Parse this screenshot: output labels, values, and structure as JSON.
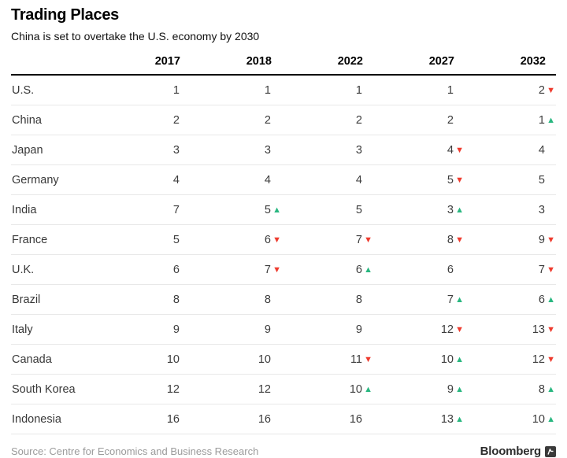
{
  "header": {
    "title": "Trading Places",
    "subtitle": "China is set to overtake the U.S. economy by 2030"
  },
  "table": {
    "country_column_header": "",
    "year_columns": [
      "2017",
      "2018",
      "2022",
      "2027",
      "2032"
    ],
    "rows": [
      {
        "country": "U.S.",
        "cells": [
          {
            "value": "1",
            "change": "none"
          },
          {
            "value": "1",
            "change": "none"
          },
          {
            "value": "1",
            "change": "none"
          },
          {
            "value": "1",
            "change": "none"
          },
          {
            "value": "2",
            "change": "down"
          }
        ]
      },
      {
        "country": "China",
        "cells": [
          {
            "value": "2",
            "change": "none"
          },
          {
            "value": "2",
            "change": "none"
          },
          {
            "value": "2",
            "change": "none"
          },
          {
            "value": "2",
            "change": "none"
          },
          {
            "value": "1",
            "change": "up"
          }
        ]
      },
      {
        "country": "Japan",
        "cells": [
          {
            "value": "3",
            "change": "none"
          },
          {
            "value": "3",
            "change": "none"
          },
          {
            "value": "3",
            "change": "none"
          },
          {
            "value": "4",
            "change": "down"
          },
          {
            "value": "4",
            "change": "none"
          }
        ]
      },
      {
        "country": "Germany",
        "cells": [
          {
            "value": "4",
            "change": "none"
          },
          {
            "value": "4",
            "change": "none"
          },
          {
            "value": "4",
            "change": "none"
          },
          {
            "value": "5",
            "change": "down"
          },
          {
            "value": "5",
            "change": "none"
          }
        ]
      },
      {
        "country": "India",
        "cells": [
          {
            "value": "7",
            "change": "none"
          },
          {
            "value": "5",
            "change": "up"
          },
          {
            "value": "5",
            "change": "none"
          },
          {
            "value": "3",
            "change": "up"
          },
          {
            "value": "3",
            "change": "none"
          }
        ]
      },
      {
        "country": "France",
        "cells": [
          {
            "value": "5",
            "change": "none"
          },
          {
            "value": "6",
            "change": "down"
          },
          {
            "value": "7",
            "change": "down"
          },
          {
            "value": "8",
            "change": "down"
          },
          {
            "value": "9",
            "change": "down"
          }
        ]
      },
      {
        "country": "U.K.",
        "cells": [
          {
            "value": "6",
            "change": "none"
          },
          {
            "value": "7",
            "change": "down"
          },
          {
            "value": "6",
            "change": "up"
          },
          {
            "value": "6",
            "change": "none"
          },
          {
            "value": "7",
            "change": "down"
          }
        ]
      },
      {
        "country": "Brazil",
        "cells": [
          {
            "value": "8",
            "change": "none"
          },
          {
            "value": "8",
            "change": "none"
          },
          {
            "value": "8",
            "change": "none"
          },
          {
            "value": "7",
            "change": "up"
          },
          {
            "value": "6",
            "change": "up"
          }
        ]
      },
      {
        "country": "Italy",
        "cells": [
          {
            "value": "9",
            "change": "none"
          },
          {
            "value": "9",
            "change": "none"
          },
          {
            "value": "9",
            "change": "none"
          },
          {
            "value": "12",
            "change": "down"
          },
          {
            "value": "13",
            "change": "down"
          }
        ]
      },
      {
        "country": "Canada",
        "cells": [
          {
            "value": "10",
            "change": "none"
          },
          {
            "value": "10",
            "change": "none"
          },
          {
            "value": "11",
            "change": "down"
          },
          {
            "value": "10",
            "change": "up"
          },
          {
            "value": "12",
            "change": "down"
          }
        ]
      },
      {
        "country": "South Korea",
        "cells": [
          {
            "value": "12",
            "change": "none"
          },
          {
            "value": "12",
            "change": "none"
          },
          {
            "value": "10",
            "change": "up"
          },
          {
            "value": "9",
            "change": "up"
          },
          {
            "value": "8",
            "change": "up"
          }
        ]
      },
      {
        "country": "Indonesia",
        "cells": [
          {
            "value": "16",
            "change": "none"
          },
          {
            "value": "16",
            "change": "none"
          },
          {
            "value": "16",
            "change": "none"
          },
          {
            "value": "13",
            "change": "up"
          },
          {
            "value": "10",
            "change": "up"
          }
        ]
      }
    ]
  },
  "chart_data": {
    "type": "table",
    "title": "Trading Places",
    "subtitle": "China is set to overtake the U.S. economy by 2030",
    "categories": [
      "2017",
      "2018",
      "2022",
      "2027",
      "2032"
    ],
    "series": [
      {
        "name": "U.S.",
        "values": [
          1,
          1,
          1,
          1,
          2
        ]
      },
      {
        "name": "China",
        "values": [
          2,
          2,
          2,
          2,
          1
        ]
      },
      {
        "name": "Japan",
        "values": [
          3,
          3,
          3,
          4,
          4
        ]
      },
      {
        "name": "Germany",
        "values": [
          4,
          4,
          4,
          5,
          5
        ]
      },
      {
        "name": "India",
        "values": [
          7,
          5,
          5,
          3,
          3
        ]
      },
      {
        "name": "France",
        "values": [
          5,
          6,
          7,
          8,
          9
        ]
      },
      {
        "name": "U.K.",
        "values": [
          6,
          7,
          6,
          6,
          7
        ]
      },
      {
        "name": "Brazil",
        "values": [
          8,
          8,
          8,
          7,
          6
        ]
      },
      {
        "name": "Italy",
        "values": [
          9,
          9,
          9,
          12,
          13
        ]
      },
      {
        "name": "Canada",
        "values": [
          10,
          10,
          11,
          10,
          12
        ]
      },
      {
        "name": "South Korea",
        "values": [
          12,
          12,
          10,
          9,
          8
        ]
      },
      {
        "name": "Indonesia",
        "values": [
          16,
          16,
          16,
          13,
          10
        ]
      }
    ]
  },
  "footer": {
    "source": "Source: Centre for Economics and Business Research",
    "brand": "Bloomberg"
  },
  "icons": {
    "up_arrow": "▲",
    "down_arrow": "▼",
    "bloomberg_mark": "bloomberg-bug-icon"
  },
  "colors": {
    "up": "#29b780",
    "down": "#ee3b2e",
    "rule_heavy": "#000000",
    "rule_light": "#e8e8e8",
    "source_text": "#9b9b9b"
  }
}
